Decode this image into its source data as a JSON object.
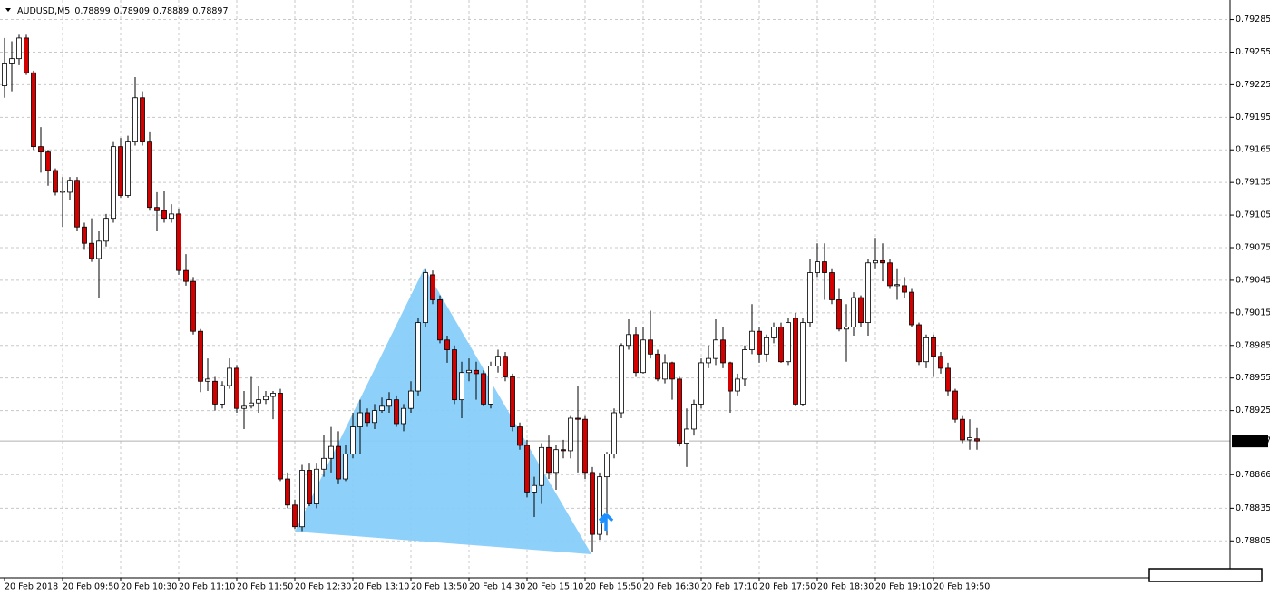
{
  "chart_data": {
    "type": "candlestick",
    "symbol": "AUDUSD,M5",
    "ohlc": [
      0.78899,
      0.78909,
      0.78889,
      0.78897
    ],
    "current_price": 0.78897,
    "bull_color": "#ffffff",
    "bear_color": "#d40000",
    "grid": true,
    "ylim": [
      0.78771,
      0.79303
    ],
    "yticks": [
      0.79285,
      0.79255,
      0.79225,
      0.79195,
      0.79165,
      0.79135,
      0.79105,
      0.79075,
      0.79045,
      0.79015,
      0.78985,
      0.78955,
      0.78925,
      0.78866,
      0.78835,
      0.78805
    ],
    "xticks": [
      "20 Feb 2018",
      "20 Feb 09:50",
      "20 Feb 10:30",
      "20 Feb 11:10",
      "20 Feb 11:50",
      "20 Feb 12:30",
      "20 Feb 13:10",
      "20 Feb 13:50",
      "20 Feb 14:30",
      "20 Feb 15:10",
      "20 Feb 15:50",
      "20 Feb 16:30",
      "20 Feb 17:10",
      "20 Feb 17:50",
      "20 Feb 18:30",
      "20 Feb 19:10",
      "20 Feb 19:50"
    ],
    "open": [
      0.79224,
      0.79245,
      0.79249,
      0.79268,
      0.79236,
      0.79168,
      0.79163,
      0.79146,
      0.79126,
      0.79126,
      0.79137,
      0.79094,
      0.79079,
      0.79065,
      0.79081,
      0.79102,
      0.79168,
      0.79123,
      0.79173,
      0.79213,
      0.79173,
      0.79112,
      0.79109,
      0.79102,
      0.79106,
      0.79054,
      0.79044,
      0.78998,
      0.78952,
      0.78952,
      0.78931,
      0.78948,
      0.78964,
      0.78927,
      0.78929,
      0.78932,
      0.78935,
      0.78938,
      0.78941,
      0.78862,
      0.78838,
      0.78818,
      0.7887,
      0.78839,
      0.78871,
      0.78881,
      0.78892,
      0.78862,
      0.78885,
      0.7891,
      0.78923,
      0.78914,
      0.78925,
      0.78929,
      0.78935,
      0.78913,
      0.78927,
      0.78943,
      0.79006,
      0.7905,
      0.79027,
      0.7899,
      0.78981,
      0.78935,
      0.7896,
      0.78962,
      0.78959,
      0.78931,
      0.78966,
      0.78975,
      0.78956,
      0.7891,
      0.78893,
      0.7885,
      0.78856,
      0.78891,
      0.78868,
      0.78889,
      0.78888,
      0.78918,
      0.78917,
      0.78868,
      0.78811,
      0.78864,
      0.78885,
      0.78923,
      0.78985,
      0.78995,
      0.7896,
      0.7899,
      0.78977,
      0.78954,
      0.78969,
      0.78954,
      0.78895,
      0.78908,
      0.78931,
      0.78969,
      0.78973,
      0.7899,
      0.78969,
      0.78943,
      0.78954,
      0.78981,
      0.78998,
      0.78977,
      0.78992,
      0.79002,
      0.7897,
      0.7901,
      0.78931,
      0.79006,
      0.79052,
      0.79062,
      0.79052,
      0.79027,
      0.79,
      0.79002,
      0.79029,
      0.79006,
      0.79061,
      0.79063,
      0.79061,
      0.7904,
      0.7904,
      0.79034,
      0.79004,
      0.7897,
      0.78992,
      0.78975,
      0.78964,
      0.78943,
      0.78917,
      0.78898,
      0.78899
    ],
    "high": [
      0.79268,
      0.79265,
      0.79271,
      0.79271,
      0.79238,
      0.79186,
      0.79165,
      0.79148,
      0.7914,
      0.7914,
      0.7914,
      0.79098,
      0.79102,
      0.7909,
      0.79106,
      0.79173,
      0.79176,
      0.79178,
      0.79232,
      0.79219,
      0.79182,
      0.79126,
      0.79127,
      0.79115,
      0.79111,
      0.79069,
      0.79048,
      0.79,
      0.78973,
      0.78956,
      0.78952,
      0.78973,
      0.78967,
      0.78943,
      0.78956,
      0.78948,
      0.78943,
      0.78943,
      0.78945,
      0.78868,
      0.78843,
      0.78875,
      0.78877,
      0.78877,
      0.78903,
      0.7891,
      0.78906,
      0.78893,
      0.78923,
      0.78935,
      0.78927,
      0.78931,
      0.78937,
      0.78942,
      0.78939,
      0.78931,
      0.78952,
      0.7901,
      0.79056,
      0.79054,
      0.79031,
      0.78994,
      0.78985,
      0.7897,
      0.78973,
      0.7897,
      0.78962,
      0.7897,
      0.78981,
      0.78979,
      0.78959,
      0.78914,
      0.78898,
      0.78864,
      0.78895,
      0.78902,
      0.78893,
      0.78898,
      0.7892,
      0.78948,
      0.7892,
      0.78873,
      0.78868,
      0.78887,
      0.78927,
      0.78987,
      0.79009,
      0.79002,
      0.79002,
      0.79017,
      0.78981,
      0.78977,
      0.7897,
      0.78956,
      0.78927,
      0.78935,
      0.78973,
      0.78985,
      0.79009,
      0.79002,
      0.7897,
      0.78959,
      0.78985,
      0.79023,
      0.79002,
      0.78995,
      0.79006,
      0.79006,
      0.7901,
      0.79015,
      0.7901,
      0.79065,
      0.79079,
      0.79079,
      0.79056,
      0.79037,
      0.79023,
      0.79034,
      0.79031,
      0.79065,
      0.79084,
      0.79079,
      0.79065,
      0.79056,
      0.79048,
      0.79037,
      0.79006,
      0.78995,
      0.78995,
      0.78979,
      0.78969,
      0.78945,
      0.7892,
      0.78917,
      0.78909
    ],
    "low": [
      0.79213,
      0.79219,
      0.79243,
      0.79234,
      0.79165,
      0.79144,
      0.79132,
      0.79123,
      0.79094,
      0.79119,
      0.7909,
      0.79073,
      0.79062,
      0.79029,
      0.79076,
      0.79098,
      0.79121,
      0.79121,
      0.79169,
      0.79169,
      0.79109,
      0.7909,
      0.79098,
      0.79098,
      0.7905,
      0.7904,
      0.78995,
      0.78942,
      0.78943,
      0.78925,
      0.78927,
      0.78945,
      0.78923,
      0.78908,
      0.78927,
      0.78923,
      0.78931,
      0.78917,
      0.7886,
      0.78835,
      0.78816,
      0.78814,
      0.78837,
      0.78835,
      0.78864,
      0.78868,
      0.78858,
      0.7886,
      0.78881,
      0.78885,
      0.7891,
      0.78908,
      0.78923,
      0.78923,
      0.7891,
      0.78906,
      0.78923,
      0.78939,
      0.79002,
      0.79023,
      0.78987,
      0.78969,
      0.78931,
      0.78918,
      0.78952,
      0.78935,
      0.78929,
      0.78927,
      0.7896,
      0.78952,
      0.78906,
      0.78889,
      0.78845,
      0.78827,
      0.78839,
      0.78862,
      0.78852,
      0.78881,
      0.78881,
      0.78868,
      0.78862,
      0.78795,
      0.78806,
      0.7881,
      0.78881,
      0.78918,
      0.78981,
      0.78956,
      0.78959,
      0.78973,
      0.78952,
      0.7895,
      0.78935,
      0.78892,
      0.78873,
      0.78902,
      0.78927,
      0.78964,
      0.78967,
      0.78964,
      0.78923,
      0.78939,
      0.78948,
      0.78977,
      0.78969,
      0.7897,
      0.78987,
      0.78969,
      0.78967,
      0.78929,
      0.78929,
      0.79002,
      0.79048,
      0.79027,
      0.79023,
      0.78998,
      0.7897,
      0.78994,
      0.79002,
      0.78994,
      0.79056,
      0.79044,
      0.79037,
      0.79027,
      0.79029,
      0.79002,
      0.78967,
      0.78964,
      0.78956,
      0.78959,
      0.78939,
      0.78914,
      0.78895,
      0.78889,
      0.78889
    ],
    "close": [
      0.79245,
      0.79249,
      0.79268,
      0.79236,
      0.79168,
      0.79163,
      0.79146,
      0.79126,
      0.79127,
      0.79137,
      0.79094,
      0.79079,
      0.79065,
      0.79081,
      0.79102,
      0.79168,
      0.79123,
      0.79173,
      0.79213,
      0.79173,
      0.79112,
      0.79109,
      0.79102,
      0.79106,
      0.79054,
      0.79044,
      0.78998,
      0.78952,
      0.78954,
      0.78931,
      0.78948,
      0.78964,
      0.78927,
      0.78929,
      0.78932,
      0.78935,
      0.78938,
      0.78941,
      0.78862,
      0.78838,
      0.78818,
      0.7887,
      0.78839,
      0.78871,
      0.78881,
      0.78892,
      0.78862,
      0.78885,
      0.7891,
      0.78923,
      0.78914,
      0.78925,
      0.78929,
      0.78935,
      0.78913,
      0.78927,
      0.78943,
      0.79006,
      0.79052,
      0.79027,
      0.7899,
      0.78981,
      0.78935,
      0.7896,
      0.78962,
      0.78959,
      0.78931,
      0.78966,
      0.78975,
      0.78956,
      0.7891,
      0.78893,
      0.7885,
      0.78856,
      0.78891,
      0.78868,
      0.78889,
      0.78888,
      0.78918,
      0.78917,
      0.78868,
      0.78811,
      0.78864,
      0.78885,
      0.78923,
      0.78985,
      0.78995,
      0.7896,
      0.7899,
      0.78977,
      0.78954,
      0.78969,
      0.78954,
      0.78895,
      0.78908,
      0.78931,
      0.78969,
      0.78973,
      0.7899,
      0.78969,
      0.78943,
      0.78954,
      0.78981,
      0.78998,
      0.78977,
      0.78992,
      0.79002,
      0.7897,
      0.79006,
      0.78931,
      0.79006,
      0.79052,
      0.79062,
      0.79052,
      0.79027,
      0.79,
      0.79002,
      0.79029,
      0.79006,
      0.79061,
      0.79063,
      0.79061,
      0.7904,
      0.79041,
      0.79034,
      0.79004,
      0.7897,
      0.78992,
      0.78975,
      0.78964,
      0.78943,
      0.78917,
      0.78898,
      0.789,
      0.78897
    ]
  }
}
